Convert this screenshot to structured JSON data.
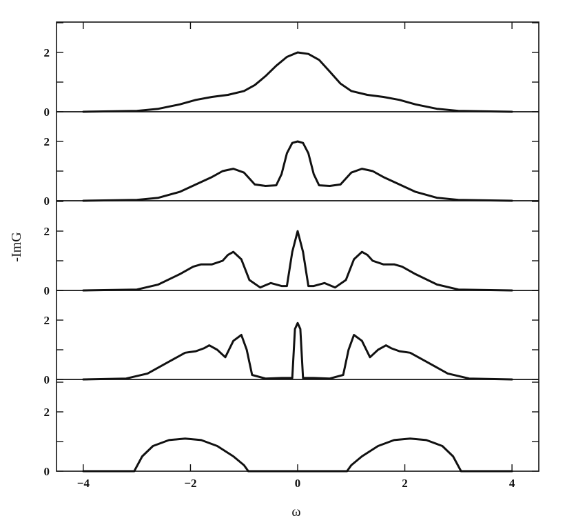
{
  "chart_data": {
    "type": "line",
    "xlabel": "ω",
    "ylabel": "-ImG",
    "xlim": [
      -4.5,
      4.5
    ],
    "xticks": [
      -4,
      -2,
      0,
      2,
      4
    ],
    "xtick_labels": [
      "−4",
      "−2",
      "0",
      "2",
      "4"
    ],
    "ylim": [
      0,
      3
    ],
    "yticks_labeled": [
      0,
      2
    ],
    "yticks_minor": [
      1,
      3
    ],
    "panels": [
      {
        "ytick_labels": [
          "0",
          "2"
        ],
        "series": [
          {
            "x": [
              -4.0,
              -3.0,
              -2.6,
              -2.2,
              -1.9,
              -1.6,
              -1.3,
              -1.0,
              -0.8,
              -0.6,
              -0.4,
              -0.2,
              0.0,
              0.2,
              0.4,
              0.6,
              0.8,
              1.0,
              1.3,
              1.6,
              1.9,
              2.2,
              2.6,
              3.0,
              4.0
            ],
            "y": [
              0.0,
              0.03,
              0.1,
              0.25,
              0.4,
              0.5,
              0.57,
              0.7,
              0.9,
              1.2,
              1.55,
              1.85,
              2.0,
              1.95,
              1.75,
              1.35,
              0.95,
              0.7,
              0.57,
              0.5,
              0.4,
              0.25,
              0.1,
              0.03,
              0.0
            ]
          }
        ]
      },
      {
        "ytick_labels": [
          "0",
          "2"
        ],
        "series": [
          {
            "x": [
              -4.0,
              -3.0,
              -2.6,
              -2.2,
              -1.9,
              -1.6,
              -1.4,
              -1.2,
              -1.0,
              -0.8,
              -0.6,
              -0.4,
              -0.3,
              -0.2,
              -0.1,
              0.0,
              0.1,
              0.2,
              0.3,
              0.4,
              0.6,
              0.8,
              1.0,
              1.2,
              1.4,
              1.6,
              1.9,
              2.2,
              2.6,
              3.0,
              4.0
            ],
            "y": [
              0.0,
              0.03,
              0.1,
              0.3,
              0.55,
              0.8,
              1.0,
              1.08,
              0.95,
              0.55,
              0.5,
              0.52,
              0.9,
              1.6,
              1.95,
              2.0,
              1.95,
              1.6,
              0.9,
              0.52,
              0.5,
              0.55,
              0.95,
              1.08,
              1.0,
              0.8,
              0.55,
              0.3,
              0.1,
              0.03,
              0.0
            ]
          }
        ]
      },
      {
        "ytick_labels": [
          "0",
          "2"
        ],
        "series": [
          {
            "x": [
              -4.0,
              -3.0,
              -2.6,
              -2.2,
              -1.95,
              -1.8,
              -1.6,
              -1.4,
              -1.3,
              -1.2,
              -1.05,
              -0.9,
              -0.7,
              -0.5,
              -0.3,
              -0.2,
              -0.1,
              0.0,
              0.1,
              0.2,
              0.3,
              0.5,
              0.7,
              0.9,
              1.05,
              1.2,
              1.3,
              1.4,
              1.6,
              1.8,
              1.95,
              2.2,
              2.6,
              3.0,
              4.0
            ],
            "y": [
              0.0,
              0.03,
              0.2,
              0.55,
              0.8,
              0.88,
              0.88,
              1.0,
              1.2,
              1.3,
              1.05,
              0.35,
              0.1,
              0.25,
              0.15,
              0.15,
              1.3,
              2.0,
              1.3,
              0.15,
              0.15,
              0.25,
              0.1,
              0.35,
              1.05,
              1.3,
              1.2,
              1.0,
              0.88,
              0.88,
              0.8,
              0.55,
              0.2,
              0.03,
              0.0
            ]
          }
        ]
      },
      {
        "ytick_labels": [
          "0",
          "2"
        ],
        "series": [
          {
            "x": [
              -4.0,
              -3.2,
              -2.8,
              -2.4,
              -2.1,
              -1.9,
              -1.75,
              -1.65,
              -1.5,
              -1.35,
              -1.2,
              -1.05,
              -0.95,
              -0.85,
              -0.6,
              -0.3,
              -0.1,
              -0.05,
              0.0,
              0.05,
              0.1,
              0.3,
              0.6,
              0.85,
              0.95,
              1.05,
              1.2,
              1.35,
              1.5,
              1.65,
              1.75,
              1.9,
              2.1,
              2.4,
              2.8,
              3.2,
              4.0
            ],
            "y": [
              0.0,
              0.03,
              0.2,
              0.6,
              0.9,
              0.95,
              1.05,
              1.15,
              1.0,
              0.75,
              1.3,
              1.5,
              1.0,
              0.15,
              0.03,
              0.05,
              0.05,
              1.7,
              1.9,
              1.7,
              0.05,
              0.05,
              0.03,
              0.15,
              1.0,
              1.5,
              1.3,
              0.75,
              1.0,
              1.15,
              1.05,
              0.95,
              0.9,
              0.6,
              0.2,
              0.03,
              0.0
            ]
          }
        ]
      },
      {
        "ytick_labels": [
          "0",
          "2"
        ],
        "series": [
          {
            "x": [
              -4.0,
              -3.05,
              -2.9,
              -2.7,
              -2.4,
              -2.1,
              -1.8,
              -1.5,
              -1.2,
              -1.0,
              -0.92,
              0.92,
              1.0,
              1.2,
              1.5,
              1.8,
              2.1,
              2.4,
              2.7,
              2.9,
              3.05,
              4.0
            ],
            "y": [
              0.0,
              0.0,
              0.5,
              0.85,
              1.05,
              1.1,
              1.05,
              0.85,
              0.5,
              0.2,
              0.0,
              0.0,
              0.2,
              0.5,
              0.85,
              1.05,
              1.1,
              1.05,
              0.85,
              0.5,
              0.0,
              0.0
            ]
          }
        ]
      }
    ]
  }
}
